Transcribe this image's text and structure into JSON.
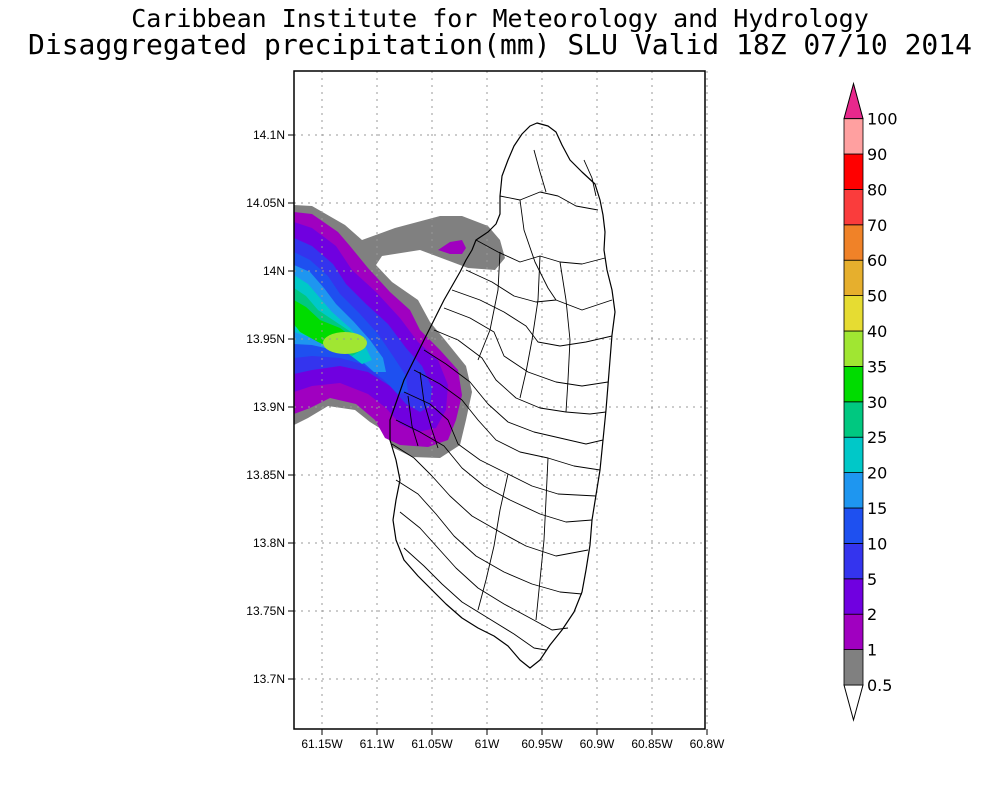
{
  "header": {
    "title": "Caribbean Institute for Meteorology and Hydrology",
    "subtitle": "Disaggregated precipitation(mm) SLU Valid 18Z 07/10 2014"
  },
  "axes": {
    "lat_ticks": [
      "14.1N",
      "14.05N",
      "14N",
      "13.95N",
      "13.9N",
      "13.85N",
      "13.8N",
      "13.75N",
      "13.7N"
    ],
    "lon_ticks": [
      "61.15W",
      "61.1W",
      "61.05W",
      "61W",
      "60.95W",
      "60.9W",
      "60.85W",
      "60.8W"
    ],
    "lat_values": [
      14.1,
      14.05,
      14.0,
      13.95,
      13.9,
      13.85,
      13.8,
      13.75,
      13.7
    ],
    "lon_values": [
      -61.15,
      -61.1,
      -61.05,
      -61.0,
      -60.95,
      -60.9,
      -60.85,
      -60.8
    ],
    "grid": "dotted"
  },
  "colorbar": {
    "levels": [
      "0.5",
      "1",
      "2",
      "5",
      "10",
      "15",
      "20",
      "25",
      "30",
      "35",
      "40",
      "50",
      "60",
      "70",
      "80",
      "90",
      "100"
    ],
    "colors": [
      "#ffffff",
      "#808080",
      "#a000c0",
      "#7000e0",
      "#3434ee",
      "#1e50f0",
      "#1e96f0",
      "#00c8c8",
      "#00c880",
      "#00dc00",
      "#a0e632",
      "#e6dc32",
      "#e6af2d",
      "#f08228",
      "#fa3c3c",
      "#ff0000",
      "#ffa0a0",
      "#e8288c"
    ]
  },
  "map": {
    "region": "Saint Lucia",
    "colors": {
      "coast": "#000000",
      "grid": "#999999",
      "land": "#ffffff"
    }
  }
}
